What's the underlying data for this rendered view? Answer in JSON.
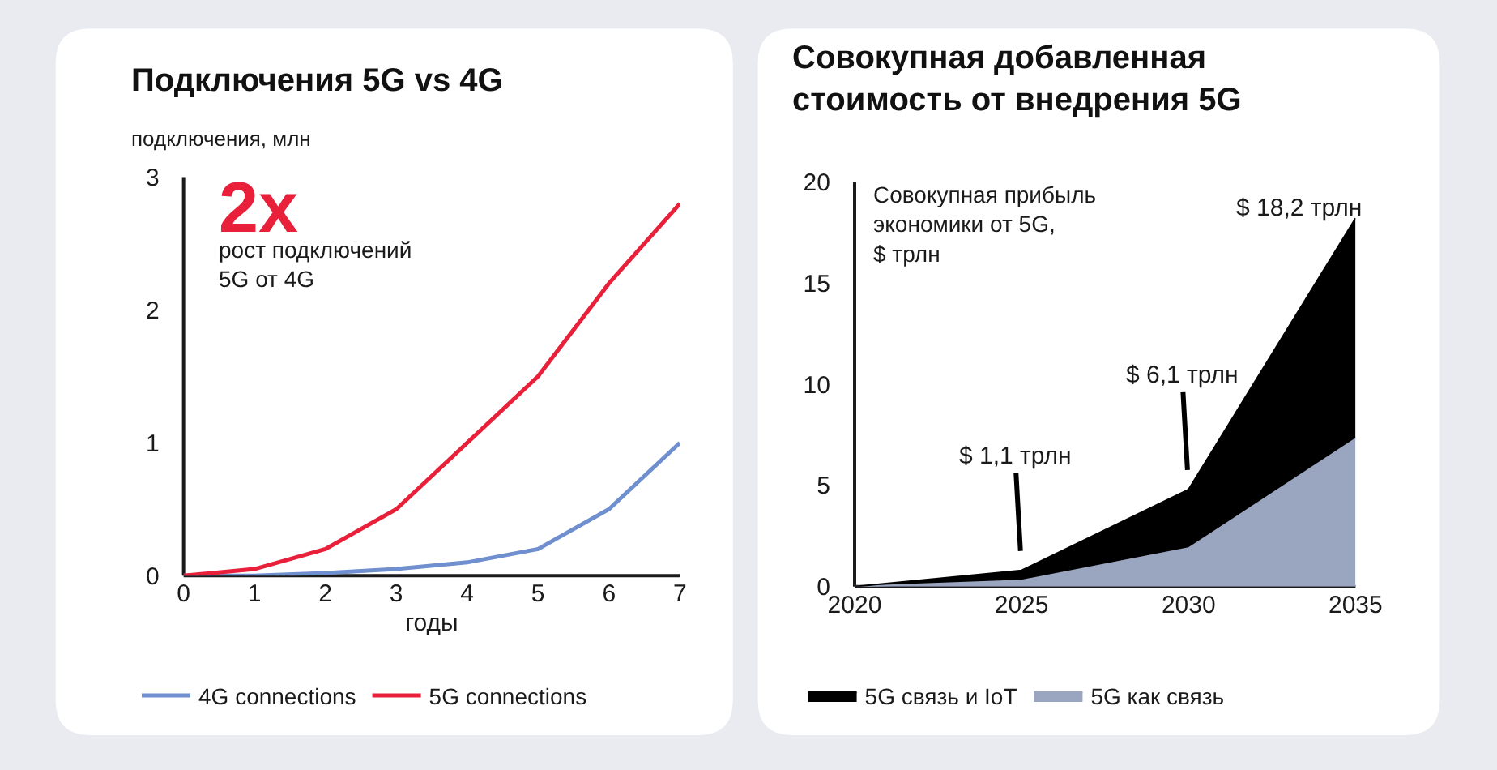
{
  "chart_data": [
    {
      "type": "line",
      "title": "Подключения 5G vs 4G",
      "xlabel": "годы",
      "ylabel": "подключения, млн",
      "x": [
        0,
        1,
        2,
        3,
        4,
        5,
        6,
        7
      ],
      "series": [
        {
          "name": "4G connections",
          "color": "#6f8fcf",
          "values": [
            0,
            0,
            0.02,
            0.05,
            0.1,
            0.2,
            0.5,
            1.0
          ]
        },
        {
          "name": "5G connections",
          "color": "#e8203a",
          "values": [
            0,
            0.05,
            0.2,
            0.5,
            1.0,
            1.5,
            2.2,
            2.8
          ]
        }
      ],
      "annotations": [
        "2x",
        "рост подключений\n5G от 4G"
      ],
      "xlim": [
        0,
        7
      ],
      "ylim": [
        0,
        3
      ],
      "xticks": [
        0,
        1,
        2,
        3,
        4,
        5,
        6,
        7
      ],
      "yticks": [
        0,
        1,
        2,
        3
      ],
      "grid": false,
      "legend": "bottom"
    },
    {
      "type": "area",
      "stacked": true,
      "title": "Совокупная добавленная\nстоимость от внедрения 5G",
      "ylabel": "Совокупная прибыль\nэкономики от 5G,\n$ трлн",
      "x": [
        2020,
        2025,
        2030,
        2035
      ],
      "series": [
        {
          "name": "5G как связь",
          "color": "#9aa5c0",
          "values": [
            0,
            0.3,
            1.9,
            7.3
          ]
        },
        {
          "name": "5G связь и IoT",
          "color": "#000000",
          "values": [
            0,
            0.5,
            2.9,
            10.9
          ]
        }
      ],
      "annotations": [
        {
          "text": "$ 1,1 трлн",
          "x": 2025,
          "y": 0.8
        },
        {
          "text": "$ 6,1 трлн",
          "x": 2030,
          "y": 4.8
        },
        "$ 18,2 трлн"
      ],
      "xlim": [
        2020,
        2035
      ],
      "ylim": [
        0,
        20
      ],
      "xticks": [
        2020,
        2025,
        2030,
        2035
      ],
      "yticks": [
        0,
        5,
        10,
        15,
        20
      ],
      "grid": false,
      "legend": "bottom"
    }
  ]
}
